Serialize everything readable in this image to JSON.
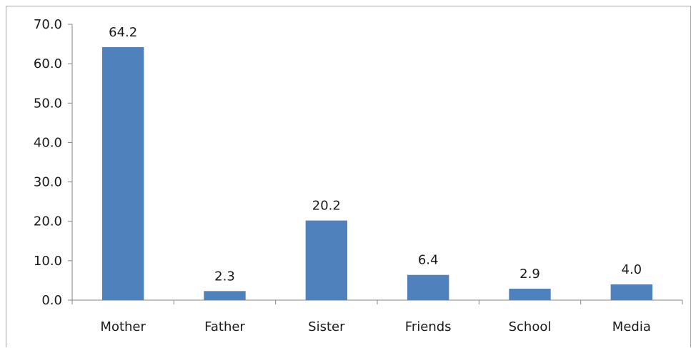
{
  "chart_data": {
    "type": "bar",
    "categories": [
      "Mother",
      "Father",
      "Sister",
      "Friends",
      "School",
      "Media"
    ],
    "values": [
      64.2,
      2.3,
      20.2,
      6.4,
      2.9,
      4.0
    ],
    "value_labels": [
      "64.2",
      "2.3",
      "20.2",
      "6.4",
      "2.9",
      "4.0"
    ],
    "y_ticks": [
      "0.0",
      "10.0",
      "20.0",
      "30.0",
      "40.0",
      "50.0",
      "60.0",
      "70.0"
    ],
    "ylim": [
      0,
      70
    ],
    "title": "",
    "xlabel": "",
    "ylabel": "",
    "grid": false,
    "legend": "none",
    "bar_color": "#4f81bd",
    "axis_color": "#868686"
  }
}
